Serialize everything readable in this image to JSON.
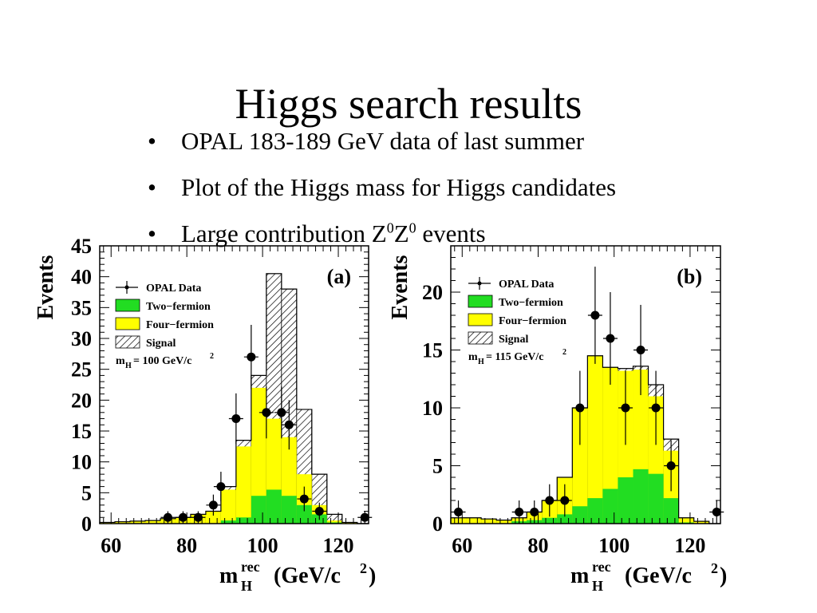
{
  "slide": {
    "title": "Higgs search results",
    "bullets": [
      {
        "text": "OPAL 183-189 GeV data of last summer",
        "suffix": ""
      },
      {
        "text": "Plot of the Higgs mass for Higgs candidates",
        "suffix": ""
      },
      {
        "text": "Large contribution Z",
        "sup1": "0",
        "mid": "Z",
        "sup2": "0",
        "suffix": " events"
      }
    ],
    "bullet_glyph": "•"
  },
  "colors": {
    "two_fermion": "#22dd22",
    "four_fermion": "#ffff00",
    "signal_hatch": "#000000",
    "frame": "#000000"
  },
  "chart_data": [
    {
      "type": "bar",
      "panel_label": "(a)",
      "ylabel": "Events",
      "xlabel": "m",
      "xlabel_sup": "rec",
      "xlabel_sub": "H",
      "xlabel_unit": "(GeV/c",
      "xlabel_unit_sup": "2",
      "xlabel_unit_end": ")",
      "xlim": [
        57,
        128
      ],
      "ylim": [
        0,
        45
      ],
      "xticks": [
        60,
        80,
        100,
        120
      ],
      "yticks": [
        0,
        5,
        10,
        15,
        20,
        25,
        30,
        35,
        40,
        45
      ],
      "bin_edges": [
        57,
        61,
        65,
        69,
        73,
        77,
        81,
        85,
        89,
        93,
        97,
        101,
        105,
        109,
        113,
        117,
        121,
        125,
        128
      ],
      "series": [
        {
          "name": "Two−fermion",
          "values": [
            0,
            0,
            0,
            0,
            0,
            0,
            0,
            0,
            0.5,
            1,
            4.5,
            5.5,
            4.5,
            3,
            1.5,
            0.2,
            0,
            0
          ]
        },
        {
          "name": "Four−fermion",
          "values": [
            0.2,
            0.3,
            0.4,
            0.5,
            0.8,
            1,
            1.5,
            2,
            5.5,
            12.5,
            22,
            17,
            14,
            8,
            3,
            0.5,
            0.2,
            0
          ]
        },
        {
          "name": "Signal",
          "values": [
            0.2,
            0.3,
            0.4,
            0.5,
            0.8,
            1,
            1.5,
            2,
            6,
            13.5,
            24,
            40.5,
            38,
            18.5,
            8,
            1.5,
            0.2,
            0
          ]
        }
      ],
      "data_points": {
        "name": "OPAL Data",
        "x": [
          75,
          79,
          83,
          87,
          89,
          93,
          97,
          101,
          105,
          107,
          111,
          115,
          127
        ],
        "y": [
          1,
          1,
          1,
          3,
          6,
          17,
          27,
          18,
          18,
          16,
          4,
          2,
          1
        ],
        "yerr": [
          1,
          1,
          1,
          1.7,
          2.4,
          4.1,
          5.2,
          4.2,
          4.2,
          4,
          2,
          1.4,
          1
        ]
      },
      "legend": [
        "OPAL Data",
        "Two−fermion",
        "Four−fermion",
        "Signal"
      ],
      "annotation": {
        "main": "m",
        "sub": "H",
        "value": "= 100 GeV/c",
        "sup": "2"
      },
      "legend_position": "top-left"
    },
    {
      "type": "bar",
      "panel_label": "(b)",
      "ylabel": "Events",
      "xlabel": "m",
      "xlabel_sup": "rec",
      "xlabel_sub": "H",
      "xlabel_unit": "(GeV/c",
      "xlabel_unit_sup": "2",
      "xlabel_unit_end": ")",
      "xlim": [
        57,
        128
      ],
      "ylim": [
        0,
        24
      ],
      "xticks": [
        60,
        80,
        100,
        120
      ],
      "yticks": [
        0,
        5,
        10,
        15,
        20
      ],
      "bin_edges": [
        57,
        61,
        65,
        69,
        73,
        77,
        81,
        85,
        89,
        93,
        97,
        101,
        105,
        109,
        113,
        117,
        121,
        125,
        128
      ],
      "series": [
        {
          "name": "Two−fermion",
          "values": [
            0,
            0,
            0,
            0,
            0.2,
            0.3,
            0.5,
            0.8,
            1.5,
            2.2,
            3,
            4,
            4.7,
            4.3,
            2.2,
            0.1,
            0,
            0
          ]
        },
        {
          "name": "Four−fermion",
          "values": [
            0.5,
            0.5,
            0.4,
            0.3,
            0.5,
            1,
            2,
            4,
            10,
            14.5,
            13.5,
            13.2,
            13.3,
            11,
            6.3,
            0.5,
            0.2,
            0
          ]
        },
        {
          "name": "Signal",
          "values": [
            0.5,
            0.5,
            0.4,
            0.3,
            0.5,
            1,
            2,
            4,
            10,
            14.5,
            13.5,
            13.4,
            13.6,
            12,
            7.3,
            0.5,
            0.2,
            0
          ]
        }
      ],
      "data_points": {
        "name": "OPAL Data",
        "x": [
          59,
          75,
          79,
          83,
          87,
          91,
          95,
          99,
          103,
          107,
          111,
          115,
          127
        ],
        "y": [
          1,
          1,
          1,
          2,
          2,
          10,
          18,
          16,
          10,
          15,
          10,
          5,
          1
        ],
        "yerr": [
          1,
          1,
          1,
          1.4,
          1.4,
          3.2,
          4.2,
          4,
          3.2,
          3.9,
          3.2,
          2.2,
          1
        ]
      },
      "legend": [
        "OPAL Data",
        "Two−fermion",
        "Four−fermion",
        "Signal"
      ],
      "annotation": {
        "main": "m",
        "sub": "H",
        "value": "= 115 GeV/c",
        "sup": "2"
      },
      "legend_position": "top-left"
    }
  ]
}
